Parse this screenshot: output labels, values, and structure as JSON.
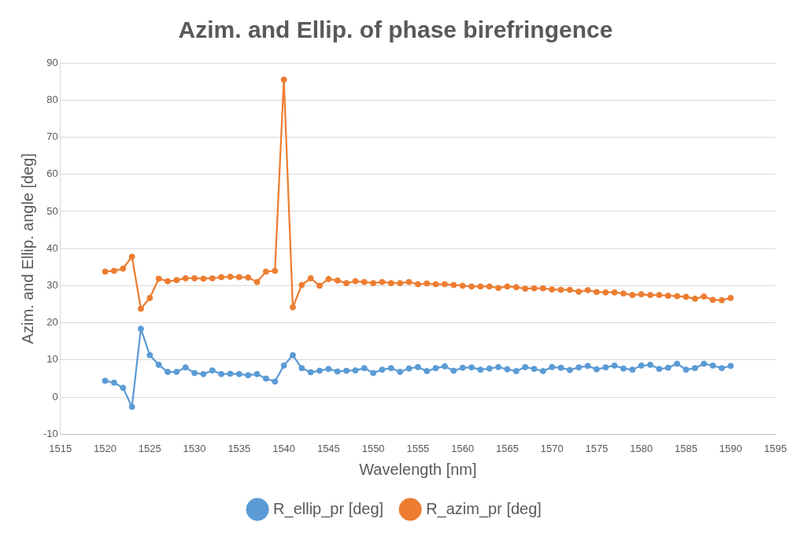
{
  "chart_data": {
    "type": "line",
    "title": "Azim. and Ellip. of phase birefringence",
    "x_label": "Wavelength [nm]",
    "y_label": "Azim. and Ellip. angle [deg]",
    "x": [
      1520,
      1521,
      1522,
      1523,
      1524,
      1525,
      1526,
      1527,
      1528,
      1529,
      1530,
      1531,
      1532,
      1533,
      1534,
      1535,
      1536,
      1537,
      1538,
      1539,
      1540,
      1541,
      1542,
      1543,
      1544,
      1545,
      1546,
      1547,
      1548,
      1549,
      1550,
      1551,
      1552,
      1553,
      1554,
      1555,
      1556,
      1557,
      1558,
      1559,
      1560,
      1561,
      1562,
      1563,
      1564,
      1565,
      1566,
      1567,
      1568,
      1569,
      1570,
      1571,
      1572,
      1573,
      1574,
      1575,
      1576,
      1577,
      1578,
      1579,
      1580,
      1581,
      1582,
      1583,
      1584,
      1585,
      1586,
      1587,
      1588,
      1589,
      1590
    ],
    "series": [
      {
        "name": "R_ellip_pr [deg]",
        "color": "#5b9bd5",
        "marker": "circle",
        "values": [
          4.4,
          3.9,
          2.5,
          -2.6,
          18.4,
          11.3,
          8.7,
          6.8,
          6.8,
          8.0,
          6.5,
          6.2,
          7.2,
          6.2,
          6.3,
          6.2,
          5.9,
          6.2,
          5.0,
          4.2,
          8.5,
          11.3,
          7.8,
          6.7,
          7.1,
          7.6,
          6.9,
          7.1,
          7.2,
          7.8,
          6.5,
          7.4,
          7.8,
          6.8,
          7.7,
          8.1,
          7.0,
          7.8,
          8.3,
          7.1,
          7.9,
          8.0,
          7.4,
          7.7,
          8.1,
          7.5,
          7.0,
          8.1,
          7.6,
          7.0,
          8.1,
          7.9,
          7.3,
          8.0,
          8.4,
          7.5,
          8.0,
          8.5,
          7.7,
          7.4,
          8.5,
          8.7,
          7.6,
          7.9,
          9.0,
          7.4,
          7.8,
          9.0,
          8.5,
          7.8,
          8.4
        ]
      },
      {
        "name": "R_azim_pr [deg]",
        "color": "#ed7d31",
        "marker": "circle",
        "values": [
          33.8,
          34.0,
          34.6,
          37.8,
          23.8,
          26.7,
          31.9,
          31.2,
          31.5,
          32.0,
          32.0,
          31.9,
          32.0,
          32.3,
          32.4,
          32.3,
          32.2,
          31.0,
          33.8,
          34.0,
          85.5,
          24.2,
          30.2,
          32.0,
          30.0,
          31.8,
          31.4,
          30.7,
          31.2,
          31.0,
          30.7,
          31.0,
          30.7,
          30.7,
          31.0,
          30.4,
          30.6,
          30.4,
          30.4,
          30.2,
          30.0,
          29.8,
          29.8,
          29.8,
          29.4,
          29.8,
          29.6,
          29.2,
          29.3,
          29.3,
          29.0,
          28.9,
          28.9,
          28.4,
          28.8,
          28.3,
          28.2,
          28.2,
          27.9,
          27.5,
          27.7,
          27.5,
          27.5,
          27.3,
          27.2,
          27.0,
          26.5,
          27.1,
          26.2,
          26.1,
          26.7
        ]
      }
    ],
    "xlim": [
      1515,
      1595
    ],
    "xticks": [
      1515,
      1520,
      1525,
      1530,
      1535,
      1540,
      1545,
      1550,
      1555,
      1560,
      1565,
      1570,
      1575,
      1580,
      1585,
      1590,
      1595
    ],
    "ylim": [
      -10,
      90
    ],
    "yticks": [
      -10,
      0,
      10,
      20,
      30,
      40,
      50,
      60,
      70,
      80,
      90
    ],
    "grid": true,
    "legend": "bottom"
  }
}
